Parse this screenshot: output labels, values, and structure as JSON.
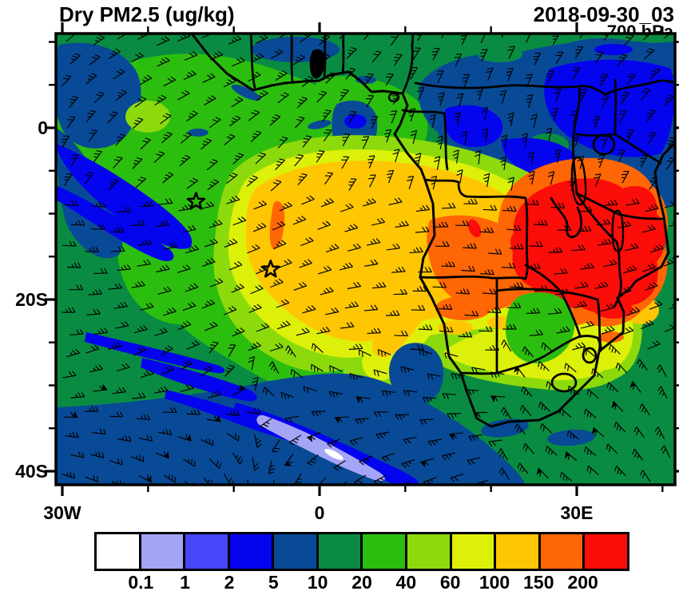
{
  "header": {
    "title": "Dry PM2.5 (ug/kg)",
    "datetime": "2018-09-30_03",
    "level": "700 hPa"
  },
  "chart_data": {
    "type": "heatmap",
    "title": "Dry PM2.5 (ug/kg)",
    "variable": "Dry PM2.5",
    "units": "ug/kg",
    "datetime": "2018-09-30_03",
    "pressure_level": "700 hPa",
    "map_extent": {
      "lon_min": -30.7,
      "lon_max": 41.5,
      "lat_min": -41.6,
      "lat_max": 11.0
    },
    "xaxis": {
      "major_ticks": [
        {
          "label": "30W",
          "lon": -30
        },
        {
          "label": "0",
          "lon": 0
        },
        {
          "label": "30E",
          "lon": 30
        }
      ],
      "minor_tick_lons": [
        -20,
        -10,
        10,
        20,
        40
      ]
    },
    "yaxis": {
      "major_ticks": [
        {
          "label": "0",
          "lat": 0
        },
        {
          "label": "20S",
          "lat": -20
        },
        {
          "label": "40S",
          "lat": -40
        }
      ],
      "minor_tick_lats": [
        10,
        5,
        -5,
        -10,
        -15,
        -25,
        -30,
        -35
      ]
    },
    "colorbar": {
      "levels": [
        "0.1",
        "1",
        "2",
        "5",
        "10",
        "20",
        "40",
        "60",
        "100",
        "150",
        "200"
      ],
      "colors": [
        "#FFFFFE",
        "#A5A5F8",
        "#4747FA",
        "#0404EF",
        "#084A96",
        "#098C42",
        "#2CBE0E",
        "#8CDA0C",
        "#DDF00A",
        "#FFC603",
        "#FF6605",
        "#FB0D09"
      ]
    },
    "markers": [
      {
        "shape": "open-star",
        "lon": -14.4,
        "lat": -8.6
      },
      {
        "shape": "open-star",
        "lon": -5.7,
        "lat": -16.5
      }
    ],
    "wind_barbs": {
      "grid_dx": 29,
      "grid_dy": 26,
      "staff_length": 17,
      "color": "#000000"
    },
    "field_summary": "Smoke plume of 60-150 ug/kg over the SE Atlantic off Angola; maxima above 200 ug/kg over Zambia/Malawi/Mozambique; 2-10 ug/kg over the Congo basin and NE sector; values below 1 ug/kg in a SW ocean streak; background 10-40 ug/kg elsewhere."
  }
}
